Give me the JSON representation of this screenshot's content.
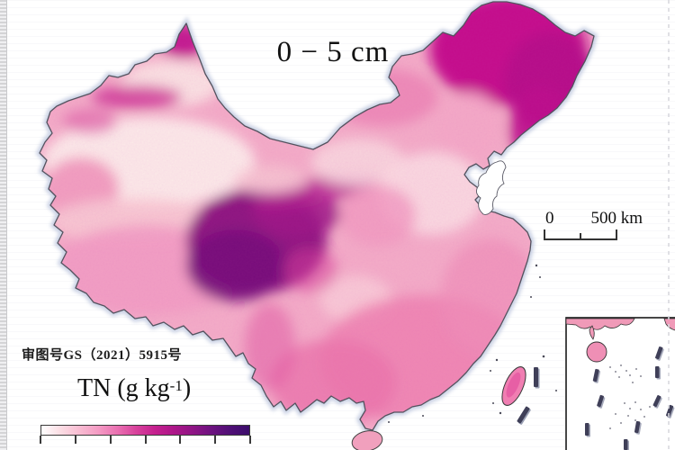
{
  "map": {
    "depth_title": "0 − 5 cm",
    "approval_note": "审图号GS（2021）5915号",
    "country": "China",
    "inset_region": "South China Sea"
  },
  "scalebar": {
    "start_label": "0",
    "end_label": "500 km"
  },
  "legend": {
    "title_prefix": "TN (g kg",
    "title_sup": "-1",
    "title_suffix": ")",
    "tick_count": 7,
    "gradient_colors": [
      "#ffffff",
      "#fbdde4",
      "#f8bcd2",
      "#f49bc4",
      "#ea71b2",
      "#d8429c",
      "#c5208f",
      "#ad1689",
      "#8f1485",
      "#6d1280",
      "#4f0f76",
      "#3b0d6b"
    ]
  },
  "colors": {
    "map_low": "#fcebe9",
    "map_mid_pink": "#f4aec8",
    "map_high_magenta": "#c40f8c",
    "map_highest_purple": "#740f79",
    "border_stroke": "#53525e",
    "border_halo": "#b6c0da"
  }
}
